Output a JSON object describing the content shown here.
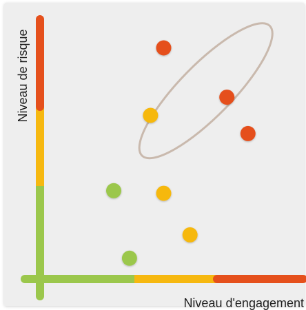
{
  "chart_data": {
    "type": "scatter",
    "title": "",
    "xlabel": "Niveau d'engagement",
    "ylabel": "Niveau de risque",
    "grid": false,
    "legend": "none",
    "axis_scale": {
      "x": "low-medium-high",
      "y": "low-medium-high"
    },
    "axis_colors": {
      "x": [
        "#9bc74c",
        "#f6b810",
        "#e5501c"
      ],
      "y": [
        "#9bc74c",
        "#f6b810",
        "#e5501c"
      ]
    },
    "point_colors": {
      "high": "#e5501c",
      "medium": "#f6b810",
      "low": "#9bc74c"
    },
    "points": [
      {
        "x": 0.47,
        "y": 0.89,
        "level": "high"
      },
      {
        "x": 0.71,
        "y": 0.7,
        "level": "high"
      },
      {
        "x": 0.79,
        "y": 0.56,
        "level": "high"
      },
      {
        "x": 0.42,
        "y": 0.63,
        "level": "medium"
      },
      {
        "x": 0.47,
        "y": 0.33,
        "level": "medium"
      },
      {
        "x": 0.57,
        "y": 0.17,
        "level": "medium"
      },
      {
        "x": 0.28,
        "y": 0.34,
        "level": "low"
      },
      {
        "x": 0.34,
        "y": 0.08,
        "level": "low"
      }
    ],
    "highlight_group": [
      0,
      1,
      2
    ],
    "highlight_color": "#c9b9ad"
  }
}
